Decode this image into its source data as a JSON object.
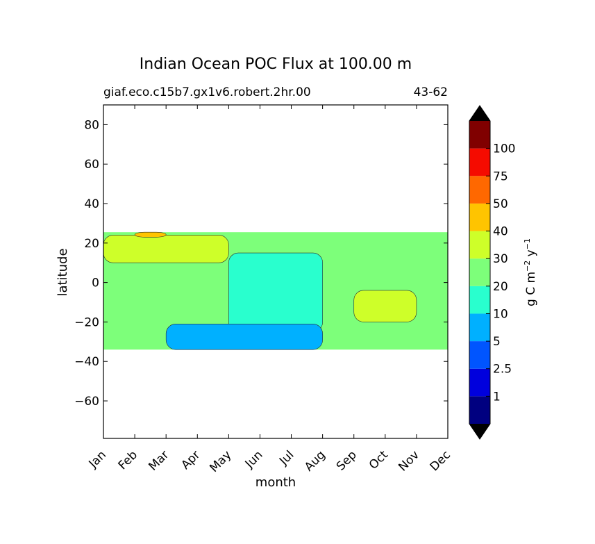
{
  "chart_data": {
    "type": "heatmap",
    "title": "Indian Ocean POC Flux at 100.00 m",
    "subtitle_left": "giaf.eco.c15b7.gx1v6.robert.2hr.00",
    "subtitle_right": "43-62",
    "xlabel": "month",
    "ylabel": "latitude",
    "x_categories": [
      "Jan",
      "Feb",
      "Mar",
      "Apr",
      "May",
      "Jun",
      "Jul",
      "Aug",
      "Sep",
      "Oct",
      "Nov",
      "Dec"
    ],
    "xlim": [
      1,
      12
    ],
    "ylim": [
      -79,
      90
    ],
    "y_ticks": [
      80,
      60,
      40,
      20,
      0,
      -20,
      -40,
      -60
    ],
    "y_tick_labels": [
      "80",
      "60",
      "40",
      "20",
      "0",
      "−20",
      "−40",
      "−60"
    ],
    "data_extent_lat": [
      -34,
      25.5
    ],
    "colorbar": {
      "label_main": "g C m",
      "label_sup1": "−2",
      "label_mid": " y",
      "label_sup2": "−1",
      "levels": [
        0,
        1,
        2.5,
        5,
        10,
        20,
        30,
        40,
        50,
        75,
        100,
        150
      ],
      "tick_labels": [
        "1",
        "2.5",
        "5",
        "10",
        "20",
        "30",
        "40",
        "50",
        "75",
        "100"
      ],
      "colors": [
        "#000080",
        "#0000dd",
        "#0055ff",
        "#00b0ff",
        "#29ffce",
        "#7dff7a",
        "#ceff29",
        "#ffc400",
        "#ff6800",
        "#f50b00",
        "#800000"
      ],
      "extend": "both",
      "extend_colors": [
        "#000000",
        "#000000"
      ]
    },
    "regions": [
      {
        "level": 20,
        "lat": [
          -34,
          25.5
        ],
        "months": [
          1,
          12
        ]
      },
      {
        "level": 10,
        "lat": [
          -25,
          15
        ],
        "months": [
          5,
          8
        ]
      },
      {
        "level": 5,
        "lat": [
          -34,
          -21
        ],
        "months": [
          3,
          8
        ]
      },
      {
        "level": 30,
        "lat": [
          -20,
          -4
        ],
        "months": [
          9,
          11
        ]
      },
      {
        "level": 30,
        "lat": [
          10,
          24
        ],
        "months": [
          1,
          5
        ]
      },
      {
        "level": 40,
        "lat": [
          23,
          25.5
        ],
        "months": [
          2,
          3
        ]
      }
    ]
  }
}
